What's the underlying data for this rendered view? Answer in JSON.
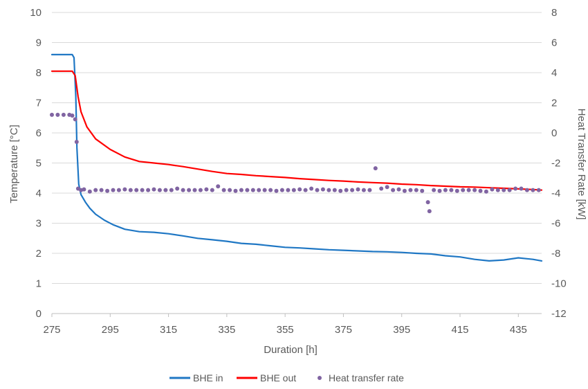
{
  "chart_data": {
    "type": "line",
    "xlabel": "Duration [h]",
    "ylabel": "Temperature [°C]",
    "y2label": "Heat Transfer Rate [kW]",
    "xlim": [
      275,
      443
    ],
    "ylim": [
      0,
      10
    ],
    "y2lim": [
      -12,
      8
    ],
    "xticks": [
      275,
      295,
      315,
      335,
      355,
      375,
      395,
      415,
      435
    ],
    "yticks": [
      0,
      1,
      2,
      3,
      4,
      5,
      6,
      7,
      8,
      9,
      10
    ],
    "y2ticks": [
      -12,
      -10,
      -8,
      -6,
      -4,
      -2,
      0,
      2,
      4,
      6,
      8
    ],
    "grid": "horizontal",
    "legend_position": "bottom",
    "colors": {
      "bhe_in": "#1f77c4",
      "bhe_out": "#ff0000",
      "heat_rate": "#8064a2"
    },
    "series": [
      {
        "name": "BHE in",
        "axis": "left",
        "style": "line",
        "x": [
          275,
          282,
          282.6,
          283.2,
          283.6,
          284.2,
          285,
          286.5,
          288,
          290,
          293,
          296,
          300,
          305,
          310,
          315,
          320,
          325,
          330,
          335,
          340,
          345,
          350,
          355,
          360,
          365,
          370,
          375,
          380,
          385,
          390,
          395,
          400,
          405,
          410,
          415,
          420,
          425,
          430,
          435,
          440,
          443
        ],
        "y": [
          8.6,
          8.6,
          8.5,
          7.2,
          5.5,
          4.3,
          3.95,
          3.7,
          3.5,
          3.3,
          3.1,
          2.95,
          2.8,
          2.72,
          2.7,
          2.65,
          2.58,
          2.5,
          2.45,
          2.4,
          2.33,
          2.3,
          2.25,
          2.2,
          2.18,
          2.15,
          2.12,
          2.1,
          2.08,
          2.06,
          2.05,
          2.03,
          2.0,
          1.98,
          1.92,
          1.88,
          1.8,
          1.75,
          1.78,
          1.85,
          1.8,
          1.75
        ]
      },
      {
        "name": "BHE out",
        "axis": "left",
        "style": "line",
        "x": [
          275,
          282,
          283,
          284,
          285,
          287,
          290,
          295,
          300,
          305,
          310,
          315,
          320,
          325,
          330,
          335,
          340,
          345,
          350,
          355,
          360,
          365,
          370,
          375,
          380,
          385,
          390,
          395,
          400,
          405,
          410,
          415,
          420,
          425,
          430,
          435,
          440,
          443
        ],
        "y": [
          8.05,
          8.05,
          7.9,
          7.2,
          6.7,
          6.2,
          5.8,
          5.45,
          5.2,
          5.05,
          5.0,
          4.95,
          4.88,
          4.8,
          4.72,
          4.65,
          4.62,
          4.58,
          4.55,
          4.52,
          4.48,
          4.45,
          4.42,
          4.4,
          4.37,
          4.35,
          4.33,
          4.3,
          4.28,
          4.25,
          4.23,
          4.21,
          4.2,
          4.18,
          4.16,
          4.14,
          4.12,
          4.1
        ]
      },
      {
        "name": "Heat transfer rate",
        "axis": "right",
        "style": "scatter",
        "x": [
          275,
          277,
          279,
          281,
          282,
          283,
          283.5,
          284,
          285,
          286,
          288,
          290,
          292,
          294,
          296,
          298,
          300,
          302,
          304,
          306,
          308,
          310,
          312,
          314,
          316,
          318,
          320,
          322,
          324,
          326,
          328,
          330,
          332,
          334,
          336,
          338,
          340,
          342,
          344,
          346,
          348,
          350,
          352,
          354,
          356,
          358,
          360,
          362,
          364,
          366,
          368,
          370,
          372,
          374,
          376,
          378,
          380,
          382,
          384,
          386,
          388,
          390,
          392,
          394,
          396,
          398,
          400,
          402,
          404,
          404.5,
          406,
          408,
          410,
          412,
          414,
          416,
          418,
          420,
          422,
          424,
          426,
          428,
          430,
          432,
          434,
          436,
          438,
          440,
          442
        ],
        "y": [
          1.2,
          1.2,
          1.2,
          1.2,
          1.15,
          0.9,
          -0.6,
          -3.7,
          -3.8,
          -3.75,
          -3.9,
          -3.8,
          -3.8,
          -3.85,
          -3.8,
          -3.8,
          -3.75,
          -3.8,
          -3.8,
          -3.8,
          -3.8,
          -3.75,
          -3.8,
          -3.8,
          -3.8,
          -3.7,
          -3.8,
          -3.8,
          -3.8,
          -3.8,
          -3.75,
          -3.8,
          -3.55,
          -3.8,
          -3.8,
          -3.85,
          -3.8,
          -3.8,
          -3.8,
          -3.8,
          -3.8,
          -3.8,
          -3.85,
          -3.8,
          -3.8,
          -3.8,
          -3.75,
          -3.8,
          -3.7,
          -3.8,
          -3.75,
          -3.8,
          -3.8,
          -3.85,
          -3.8,
          -3.8,
          -3.75,
          -3.8,
          -3.8,
          -2.35,
          -3.7,
          -3.6,
          -3.8,
          -3.75,
          -3.85,
          -3.8,
          -3.8,
          -3.85,
          -4.6,
          -5.2,
          -3.8,
          -3.85,
          -3.8,
          -3.8,
          -3.85,
          -3.8,
          -3.8,
          -3.8,
          -3.85,
          -3.9,
          -3.75,
          -3.8,
          -3.8,
          -3.8,
          -3.7,
          -3.7,
          -3.8,
          -3.8,
          -3.8
        ]
      }
    ]
  }
}
